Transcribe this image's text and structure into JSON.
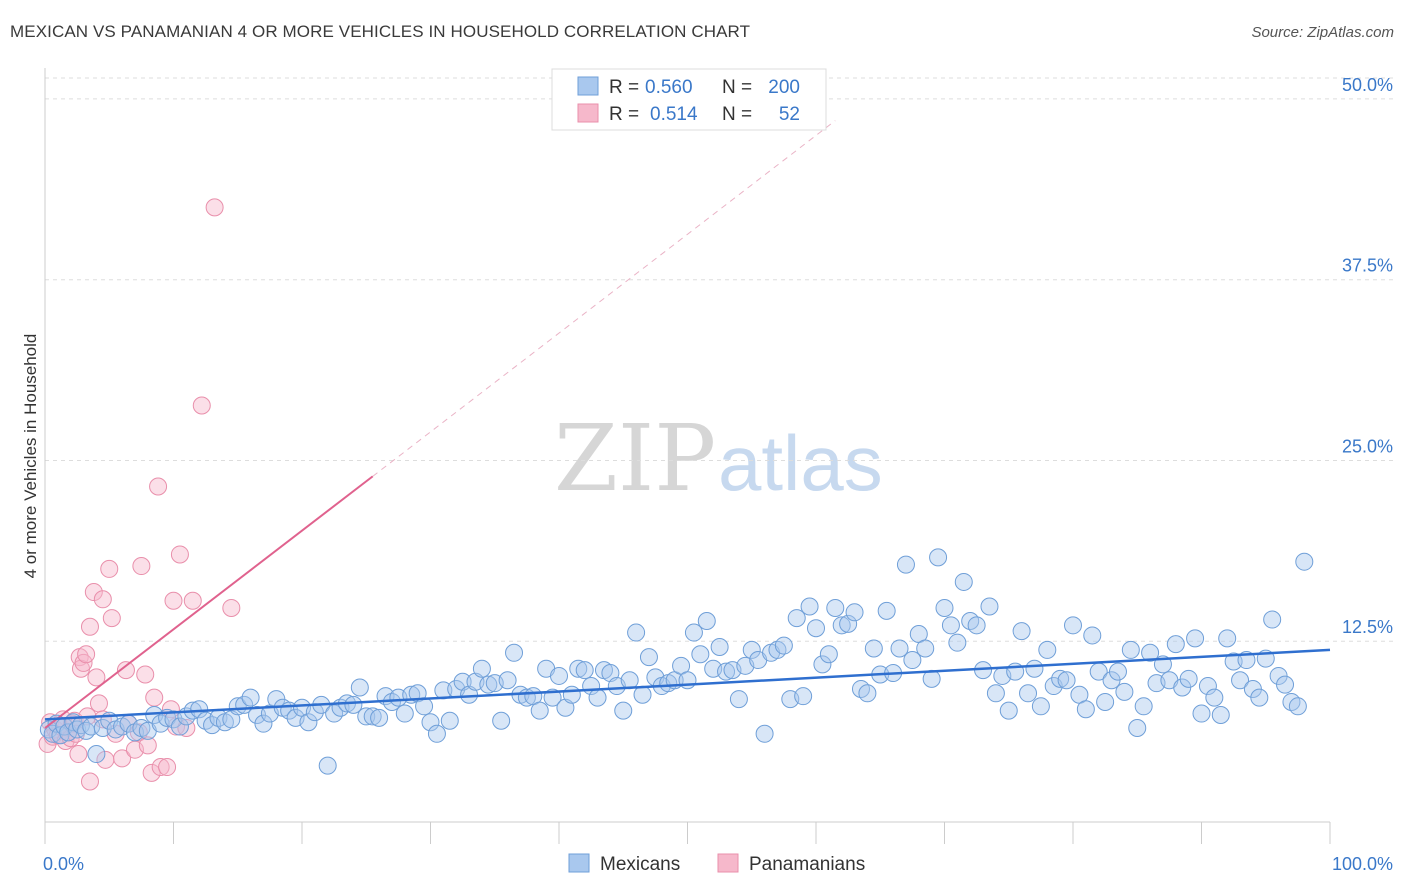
{
  "header": {
    "title": "MEXICAN VS PANAMANIAN 4 OR MORE VEHICLES IN HOUSEHOLD CORRELATION CHART",
    "source": "Source: ZipAtlas.com"
  },
  "watermark": {
    "zip": "ZIP",
    "atlas": "atlas"
  },
  "legend_box": {
    "rows": [
      {
        "r_label": "R =",
        "r_value": "0.560",
        "n_label": "N =",
        "n_value": "200"
      },
      {
        "r_label": "R =",
        "r_value": "0.514",
        "n_label": "N =",
        "n_value": "52"
      }
    ]
  },
  "bottom_legend": {
    "items": [
      {
        "label": "Mexicans"
      },
      {
        "label": "Panamanians"
      }
    ]
  },
  "colors": {
    "blue_fill": "#a9c8ee",
    "blue_stroke": "#6f9fd8",
    "blue_line": "#2f6fcf",
    "blue_text": "#3a78c9",
    "pink_fill": "#f6b8cb",
    "pink_stroke": "#e98fab",
    "pink_line": "#e0628e",
    "grid": "#dddddd",
    "axis": "#cccccc"
  },
  "chart_data": {
    "type": "scatter",
    "title": "MEXICAN VS PANAMANIAN 4 OR MORE VEHICLES IN HOUSEHOLD CORRELATION CHART",
    "xlabel": "",
    "ylabel": "4 or more Vehicles in Household",
    "xlim": [
      0,
      100
    ],
    "ylim": [
      0,
      52
    ],
    "x_tick_labels": [
      "0.0%",
      "100.0%"
    ],
    "y_ticks": [
      12.5,
      25.0,
      37.5,
      50.0
    ],
    "y_tick_labels": [
      "12.5%",
      "25.0%",
      "37.5%",
      "50.0%"
    ],
    "grid": true,
    "legend": "top-center",
    "series": [
      {
        "name": "Mexicans",
        "color": "#a9c8ee",
        "r": 0.56,
        "n": 200,
        "trend": {
          "x": [
            0,
            100
          ],
          "y": [
            7.1,
            11.9
          ]
        },
        "points": [
          [
            0.3,
            6.4
          ],
          [
            0.6,
            6.1
          ],
          [
            0.9,
            6.8
          ],
          [
            1.2,
            6.0
          ],
          [
            1.5,
            6.6
          ],
          [
            1.8,
            6.2
          ],
          [
            2.2,
            6.9
          ],
          [
            2.5,
            6.4
          ],
          [
            2.8,
            6.7
          ],
          [
            3.2,
            6.3
          ],
          [
            3.6,
            6.6
          ],
          [
            4.0,
            4.7
          ],
          [
            4.5,
            6.5
          ],
          [
            5.0,
            7.0
          ],
          [
            5.5,
            6.4
          ],
          [
            6.0,
            6.6
          ],
          [
            6.5,
            6.8
          ],
          [
            7.0,
            6.2
          ],
          [
            7.5,
            6.5
          ],
          [
            8.0,
            6.3
          ],
          [
            8.5,
            7.4
          ],
          [
            9.0,
            6.8
          ],
          [
            9.5,
            7.2
          ],
          [
            10.0,
            7.1
          ],
          [
            10.5,
            6.6
          ],
          [
            11.0,
            7.3
          ],
          [
            11.5,
            7.7
          ],
          [
            12.0,
            7.8
          ],
          [
            12.5,
            7.0
          ],
          [
            13.0,
            6.7
          ],
          [
            13.5,
            7.2
          ],
          [
            14.0,
            6.9
          ],
          [
            14.5,
            7.1
          ],
          [
            15.0,
            8.0
          ],
          [
            15.5,
            8.1
          ],
          [
            16.0,
            8.6
          ],
          [
            16.5,
            7.4
          ],
          [
            17.0,
            6.8
          ],
          [
            17.5,
            7.5
          ],
          [
            18.0,
            8.5
          ],
          [
            18.5,
            7.9
          ],
          [
            19.0,
            7.7
          ],
          [
            19.5,
            7.2
          ],
          [
            20.0,
            7.9
          ],
          [
            20.5,
            6.9
          ],
          [
            21.0,
            7.6
          ],
          [
            21.5,
            8.1
          ],
          [
            22.0,
            3.9
          ],
          [
            22.5,
            7.5
          ],
          [
            23.0,
            7.9
          ],
          [
            23.5,
            8.2
          ],
          [
            24.0,
            8.1
          ],
          [
            24.5,
            9.3
          ],
          [
            25.0,
            7.3
          ],
          [
            25.5,
            7.3
          ],
          [
            26.0,
            7.2
          ],
          [
            26.5,
            8.7
          ],
          [
            27.0,
            8.3
          ],
          [
            27.5,
            8.6
          ],
          [
            28.0,
            7.5
          ],
          [
            28.5,
            8.8
          ],
          [
            29.0,
            8.9
          ],
          [
            29.5,
            8.0
          ],
          [
            30.0,
            6.9
          ],
          [
            30.5,
            6.1
          ],
          [
            31.0,
            9.1
          ],
          [
            31.5,
            7.0
          ],
          [
            32.0,
            9.2
          ],
          [
            32.5,
            9.7
          ],
          [
            33.0,
            8.8
          ],
          [
            33.5,
            9.7
          ],
          [
            34.0,
            10.6
          ],
          [
            34.5,
            9.5
          ],
          [
            35.0,
            9.6
          ],
          [
            35.5,
            7.0
          ],
          [
            36.0,
            9.8
          ],
          [
            36.5,
            11.7
          ],
          [
            37.0,
            8.8
          ],
          [
            37.5,
            8.6
          ],
          [
            38.0,
            8.7
          ],
          [
            38.5,
            7.7
          ],
          [
            39.0,
            10.6
          ],
          [
            39.5,
            8.6
          ],
          [
            40.0,
            10.1
          ],
          [
            40.5,
            7.9
          ],
          [
            41.0,
            8.8
          ],
          [
            41.5,
            10.6
          ],
          [
            42.0,
            10.5
          ],
          [
            42.5,
            9.4
          ],
          [
            43.0,
            8.6
          ],
          [
            43.5,
            10.5
          ],
          [
            44.0,
            10.3
          ],
          [
            44.5,
            9.4
          ],
          [
            45.0,
            7.7
          ],
          [
            45.5,
            9.8
          ],
          [
            46.0,
            13.1
          ],
          [
            46.5,
            8.8
          ],
          [
            47.0,
            11.4
          ],
          [
            47.5,
            10.0
          ],
          [
            48.0,
            9.4
          ],
          [
            48.5,
            9.6
          ],
          [
            49.0,
            9.8
          ],
          [
            49.5,
            10.8
          ],
          [
            50.0,
            9.8
          ],
          [
            50.5,
            13.1
          ],
          [
            51.0,
            11.6
          ],
          [
            51.5,
            13.9
          ],
          [
            52.0,
            10.6
          ],
          [
            52.5,
            12.1
          ],
          [
            53.0,
            10.4
          ],
          [
            53.5,
            10.5
          ],
          [
            54.0,
            8.5
          ],
          [
            54.5,
            10.8
          ],
          [
            55.0,
            11.9
          ],
          [
            55.5,
            11.2
          ],
          [
            56.0,
            6.1
          ],
          [
            56.5,
            11.7
          ],
          [
            57.0,
            11.9
          ],
          [
            57.5,
            12.2
          ],
          [
            58.0,
            8.5
          ],
          [
            58.5,
            14.1
          ],
          [
            59.0,
            8.7
          ],
          [
            59.5,
            14.9
          ],
          [
            60.0,
            13.4
          ],
          [
            60.5,
            10.9
          ],
          [
            61.0,
            11.6
          ],
          [
            61.5,
            14.8
          ],
          [
            62.0,
            13.6
          ],
          [
            62.5,
            13.7
          ],
          [
            63.0,
            14.5
          ],
          [
            63.5,
            9.2
          ],
          [
            64.0,
            8.9
          ],
          [
            64.5,
            12.0
          ],
          [
            65.0,
            10.2
          ],
          [
            65.5,
            14.6
          ],
          [
            66.0,
            10.3
          ],
          [
            66.5,
            12.0
          ],
          [
            67.0,
            17.8
          ],
          [
            67.5,
            11.2
          ],
          [
            68.0,
            13.0
          ],
          [
            68.5,
            12.0
          ],
          [
            69.0,
            9.9
          ],
          [
            69.5,
            18.3
          ],
          [
            70.0,
            14.8
          ],
          [
            70.5,
            13.6
          ],
          [
            71.0,
            12.4
          ],
          [
            71.5,
            16.6
          ],
          [
            72.0,
            13.9
          ],
          [
            72.5,
            13.6
          ],
          [
            73.0,
            10.5
          ],
          [
            73.5,
            14.9
          ],
          [
            74.0,
            8.9
          ],
          [
            74.5,
            10.1
          ],
          [
            75.0,
            7.7
          ],
          [
            75.5,
            10.4
          ],
          [
            76.0,
            13.2
          ],
          [
            76.5,
            8.9
          ],
          [
            77.0,
            10.6
          ],
          [
            77.5,
            8.0
          ],
          [
            78.0,
            11.9
          ],
          [
            78.5,
            9.4
          ],
          [
            79.0,
            9.9
          ],
          [
            79.5,
            9.8
          ],
          [
            80.0,
            13.6
          ],
          [
            80.5,
            8.8
          ],
          [
            81.0,
            7.8
          ],
          [
            81.5,
            12.9
          ],
          [
            82.0,
            10.4
          ],
          [
            82.5,
            8.3
          ],
          [
            83.0,
            9.8
          ],
          [
            83.5,
            10.4
          ],
          [
            84.0,
            9.0
          ],
          [
            84.5,
            11.9
          ],
          [
            85.0,
            6.5
          ],
          [
            85.5,
            8.0
          ],
          [
            86.0,
            11.7
          ],
          [
            86.5,
            9.6
          ],
          [
            87.0,
            10.9
          ],
          [
            87.5,
            9.8
          ],
          [
            88.0,
            12.3
          ],
          [
            88.5,
            9.3
          ],
          [
            89.0,
            9.9
          ],
          [
            89.5,
            12.7
          ],
          [
            90.0,
            7.5
          ],
          [
            90.5,
            9.4
          ],
          [
            91.0,
            8.6
          ],
          [
            91.5,
            7.4
          ],
          [
            92.0,
            12.7
          ],
          [
            92.5,
            11.1
          ],
          [
            93.0,
            9.8
          ],
          [
            93.5,
            11.2
          ],
          [
            94.0,
            9.2
          ],
          [
            94.5,
            8.6
          ],
          [
            95.0,
            11.3
          ],
          [
            95.5,
            14.0
          ],
          [
            96.0,
            10.1
          ],
          [
            96.5,
            9.5
          ],
          [
            97.0,
            8.3
          ],
          [
            97.5,
            8.0
          ],
          [
            98.0,
            18.0
          ]
        ]
      },
      {
        "name": "Panamanians",
        "color": "#f6b8cb",
        "r": 0.514,
        "n": 52,
        "trend": {
          "x": [
            0,
            25.5
          ],
          "y": [
            6.5,
            23.9
          ]
        },
        "trend_extension": {
          "x": [
            25.5,
            61.5
          ],
          "y": [
            23.9,
            48.5
          ]
        },
        "points": [
          [
            0.2,
            5.4
          ],
          [
            0.4,
            6.9
          ],
          [
            0.6,
            5.9
          ],
          [
            0.8,
            6.4
          ],
          [
            1.0,
            6.0
          ],
          [
            1.2,
            6.6
          ],
          [
            1.4,
            7.1
          ],
          [
            1.6,
            5.6
          ],
          [
            1.8,
            6.2
          ],
          [
            2.0,
            5.8
          ],
          [
            2.1,
            6.8
          ],
          [
            2.3,
            7.0
          ],
          [
            2.4,
            6.1
          ],
          [
            2.6,
            4.7
          ],
          [
            2.7,
            11.4
          ],
          [
            2.8,
            10.6
          ],
          [
            3.0,
            11.0
          ],
          [
            3.2,
            11.6
          ],
          [
            3.3,
            7.3
          ],
          [
            3.5,
            13.5
          ],
          [
            3.5,
            2.8
          ],
          [
            3.8,
            15.9
          ],
          [
            4.0,
            10.0
          ],
          [
            4.2,
            8.2
          ],
          [
            4.5,
            15.4
          ],
          [
            4.5,
            7.1
          ],
          [
            4.7,
            4.3
          ],
          [
            5.0,
            17.5
          ],
          [
            5.2,
            14.1
          ],
          [
            5.5,
            6.1
          ],
          [
            6.0,
            4.4
          ],
          [
            6.3,
            10.5
          ],
          [
            6.5,
            6.8
          ],
          [
            7.0,
            5.0
          ],
          [
            7.3,
            6.2
          ],
          [
            7.5,
            17.7
          ],
          [
            7.8,
            10.2
          ],
          [
            8.0,
            5.3
          ],
          [
            8.3,
            3.4
          ],
          [
            8.5,
            8.6
          ],
          [
            8.8,
            23.2
          ],
          [
            9.0,
            3.8
          ],
          [
            9.5,
            3.8
          ],
          [
            9.8,
            7.8
          ],
          [
            10.0,
            15.3
          ],
          [
            10.2,
            6.6
          ],
          [
            10.5,
            18.5
          ],
          [
            11.0,
            6.5
          ],
          [
            11.5,
            15.3
          ],
          [
            12.2,
            28.8
          ],
          [
            13.2,
            42.5
          ],
          [
            14.5,
            14.8
          ]
        ]
      }
    ]
  }
}
